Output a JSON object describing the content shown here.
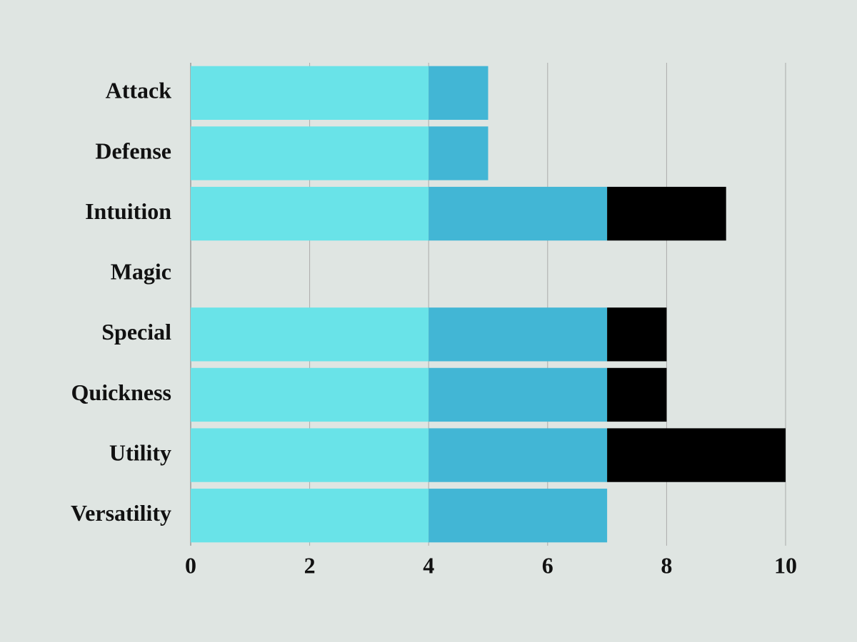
{
  "chart_data": {
    "type": "stacked-bar-horizontal",
    "categories": [
      "Attack",
      "Defense",
      "Intuition",
      "Magic",
      "Special",
      "Quickness",
      "Utility",
      "Versatility"
    ],
    "series": [
      {
        "color": "#69e3e8",
        "values": [
          4,
          4,
          4,
          0,
          4,
          4,
          4,
          4
        ]
      },
      {
        "color": "#42b6d5",
        "values": [
          1,
          1,
          3,
          0,
          3,
          3,
          3,
          3
        ]
      },
      {
        "color": "#000000",
        "values": [
          0,
          0,
          2,
          0,
          1,
          1,
          3,
          0
        ]
      }
    ],
    "xlim": [
      0,
      10
    ],
    "xticks": [
      0,
      2,
      4,
      6,
      8,
      10
    ],
    "grid": true
  }
}
